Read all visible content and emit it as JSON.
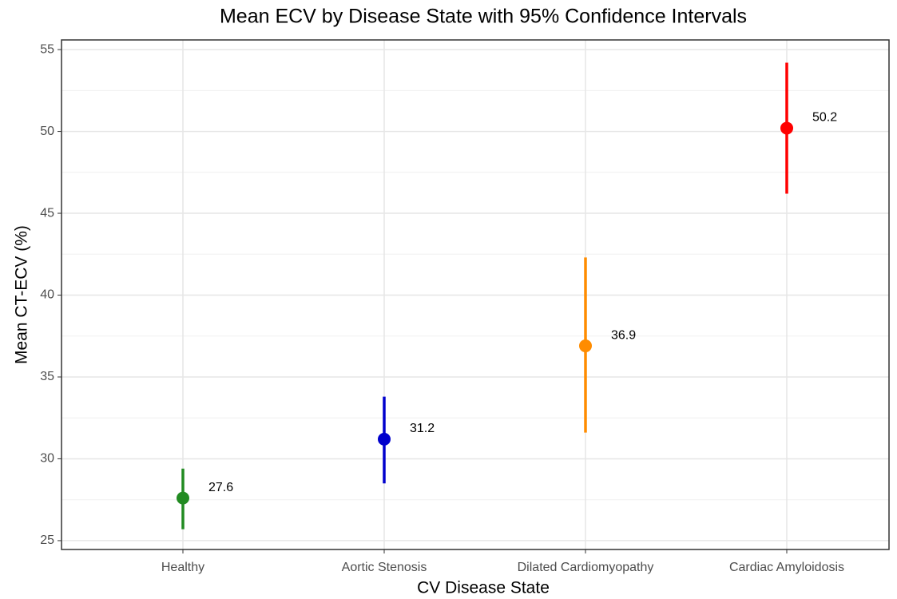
{
  "chart_data": {
    "type": "errorbar",
    "title": "Mean ECV by Disease State with 95% Confidence Intervals",
    "x_label": "CV Disease State",
    "y_label": "Mean CT-ECV (%)",
    "categories": [
      "Healthy",
      "Aortic Stenosis",
      "Dilated Cardiomyopathy",
      "Cardiac Amyloidosis"
    ],
    "values": [
      27.6,
      31.2,
      36.9,
      50.2
    ],
    "ci_lower": [
      25.7,
      28.5,
      31.6,
      46.2
    ],
    "ci_upper": [
      29.4,
      33.8,
      42.3,
      54.2
    ],
    "colors": [
      "#228b22",
      "#0000cd",
      "#ff8c00",
      "#ff0000"
    ],
    "ylim": [
      24.46,
      55.59
    ],
    "yticks": [
      25,
      30,
      35,
      40,
      45,
      50,
      55
    ],
    "grid": true
  }
}
